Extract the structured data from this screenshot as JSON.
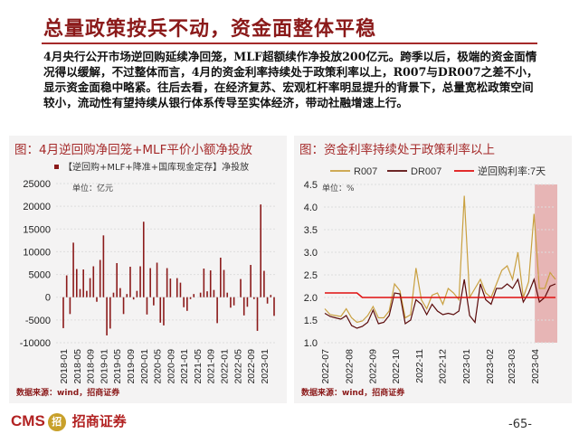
{
  "title": "总量政策按兵不动，资金面整体平稳",
  "body": "4月央行公开市场逆回购延续净回笼，MLF超额续作净投放200亿元。跨季以后，极端的资金面情况得以缓解，不过整体而言，4月的资金利率持续处于政策利率以上，R007与DR007之差不小，显示资金面稳中略紧。往后去看，在经济复苏、宏观杠杆率明显提升的背景下，总量宽松政策空间较小，流动性有望持续从银行体系传导至实体经济，带动社融增速上行。",
  "left_panel": {
    "title": "图：4月逆回购净回笼+MLF平价小额净投放",
    "source": "数据来源：wind，招商证券"
  },
  "right_panel": {
    "title": "图：资金利率持续处于政策利率以上",
    "source": "数据来源：wind，招商证券"
  },
  "footer": {
    "logo": "CMS",
    "logo_cn": "招商证券",
    "page": "-65-"
  },
  "colors": {
    "accent": "#8b1a1a",
    "bar": "#8b1a1a",
    "r007": "#c9a040",
    "dr007": "#5a0a0a",
    "policy": "#e01010",
    "shade": "#e3a5a5"
  },
  "chart_data": [
    {
      "type": "bar",
      "legend": "【逆回购+MLF+降准+国库现金定存】净投放",
      "unit": "单位：亿元",
      "ylim": [
        -10000,
        25000
      ],
      "yticks": [
        25000,
        20000,
        15000,
        10000,
        5000,
        0,
        -5000,
        -10000
      ],
      "xticks": [
        "2018-01",
        "2018-05",
        "2018-09",
        "2019-01",
        "2019-05",
        "2019-09",
        "2020-01",
        "2020-05",
        "2020-09",
        "2021-01",
        "2021-05",
        "2021-09",
        "2022-01",
        "2022-05",
        "2022-09",
        "2023-01"
      ],
      "start": "2018-01",
      "grid": true,
      "values": [
        -6800,
        4800,
        -3700,
        12000,
        6200,
        1800,
        6100,
        1400,
        4200,
        6800,
        -1000,
        8200,
        13600,
        -8400,
        -6900,
        1000,
        7500,
        2000,
        -3700,
        700,
        6700,
        -500,
        1400,
        6800,
        16600,
        -3800,
        6400,
        -1800,
        7600,
        -5600,
        -6200,
        6400,
        4100,
        0,
        4200,
        3200,
        -2200,
        -3000,
        -400,
        700,
        0,
        1000,
        6300,
        1300,
        5900,
        1600,
        -5700,
        8700,
        6000,
        1000,
        -2300,
        -1800,
        0,
        4000,
        -4000,
        -2100,
        7100,
        -400,
        -7400,
        20400,
        5800,
        -1400,
        500,
        -4100
      ]
    },
    {
      "type": "line",
      "unit": "单位：%",
      "ylim": [
        1.0,
        4.5
      ],
      "yticks": [
        "4.5",
        "4.0",
        "3.5",
        "3.0",
        "2.5",
        "2.0",
        "1.5",
        "1.0"
      ],
      "xticks": [
        "2022-07",
        "2022-08",
        "2022-09",
        "2022-10",
        "2022-11",
        "2022-12",
        "2023-01",
        "2023-02",
        "2023-03",
        "2023-04"
      ],
      "grid": true,
      "shaded_range": [
        "2023-04-01",
        "2023-04-28"
      ],
      "x": [
        "2022-07-01",
        "2022-07-08",
        "2022-07-15",
        "2022-07-22",
        "2022-07-29",
        "2022-08-05",
        "2022-08-12",
        "2022-08-19",
        "2022-08-26",
        "2022-09-02",
        "2022-09-09",
        "2022-09-16",
        "2022-09-23",
        "2022-09-30",
        "2022-10-07",
        "2022-10-14",
        "2022-10-21",
        "2022-10-28",
        "2022-11-04",
        "2022-11-11",
        "2022-11-18",
        "2022-11-25",
        "2022-12-02",
        "2022-12-09",
        "2022-12-16",
        "2022-12-23",
        "2022-12-30",
        "2023-01-06",
        "2023-01-13",
        "2023-01-20",
        "2023-01-27",
        "2023-02-03",
        "2023-02-10",
        "2023-02-17",
        "2023-02-24",
        "2023-03-03",
        "2023-03-10",
        "2023-03-17",
        "2023-03-24",
        "2023-03-31",
        "2023-04-07",
        "2023-04-14",
        "2023-04-21",
        "2023-04-28"
      ],
      "series": [
        {
          "name": "R007",
          "values": [
            1.75,
            1.62,
            1.6,
            1.58,
            1.75,
            1.55,
            1.45,
            1.48,
            1.6,
            1.8,
            1.55,
            1.55,
            1.7,
            2.3,
            2.15,
            1.55,
            1.62,
            2.65,
            1.95,
            1.75,
            2.05,
            2.1,
            1.85,
            2.2,
            2.1,
            1.95,
            4.25,
            2.0,
            2.2,
            2.4,
            2.1,
            2.0,
            2.3,
            2.6,
            2.7,
            2.4,
            3.0,
            2.0,
            2.35,
            3.85,
            2.2,
            2.2,
            2.55,
            2.4
          ]
        },
        {
          "name": "DR007",
          "values": [
            1.65,
            1.58,
            1.55,
            1.52,
            1.6,
            1.38,
            1.32,
            1.36,
            1.45,
            1.72,
            1.42,
            1.45,
            1.6,
            2.1,
            2.08,
            1.42,
            1.5,
            1.95,
            1.85,
            1.62,
            1.85,
            1.7,
            1.62,
            1.65,
            1.62,
            1.7,
            2.4,
            1.6,
            1.45,
            2.3,
            1.95,
            1.85,
            2.2,
            2.2,
            2.3,
            2.2,
            2.4,
            1.9,
            2.1,
            2.4,
            1.9,
            2.0,
            2.25,
            2.3
          ]
        },
        {
          "name": "逆回购利率:7天",
          "values": [
            2.1,
            2.1,
            2.1,
            2.1,
            2.1,
            2.1,
            2.1,
            2.0,
            2.0,
            2.0,
            2.0,
            2.0,
            2.0,
            2.0,
            2.0,
            2.0,
            2.0,
            2.0,
            2.0,
            2.0,
            2.0,
            2.0,
            2.0,
            2.0,
            2.0,
            2.0,
            2.0,
            2.0,
            2.0,
            2.0,
            2.0,
            2.0,
            2.0,
            2.0,
            2.0,
            2.0,
            2.0,
            2.0,
            2.0,
            2.0,
            2.0,
            2.0,
            2.0,
            2.0
          ]
        }
      ]
    }
  ]
}
